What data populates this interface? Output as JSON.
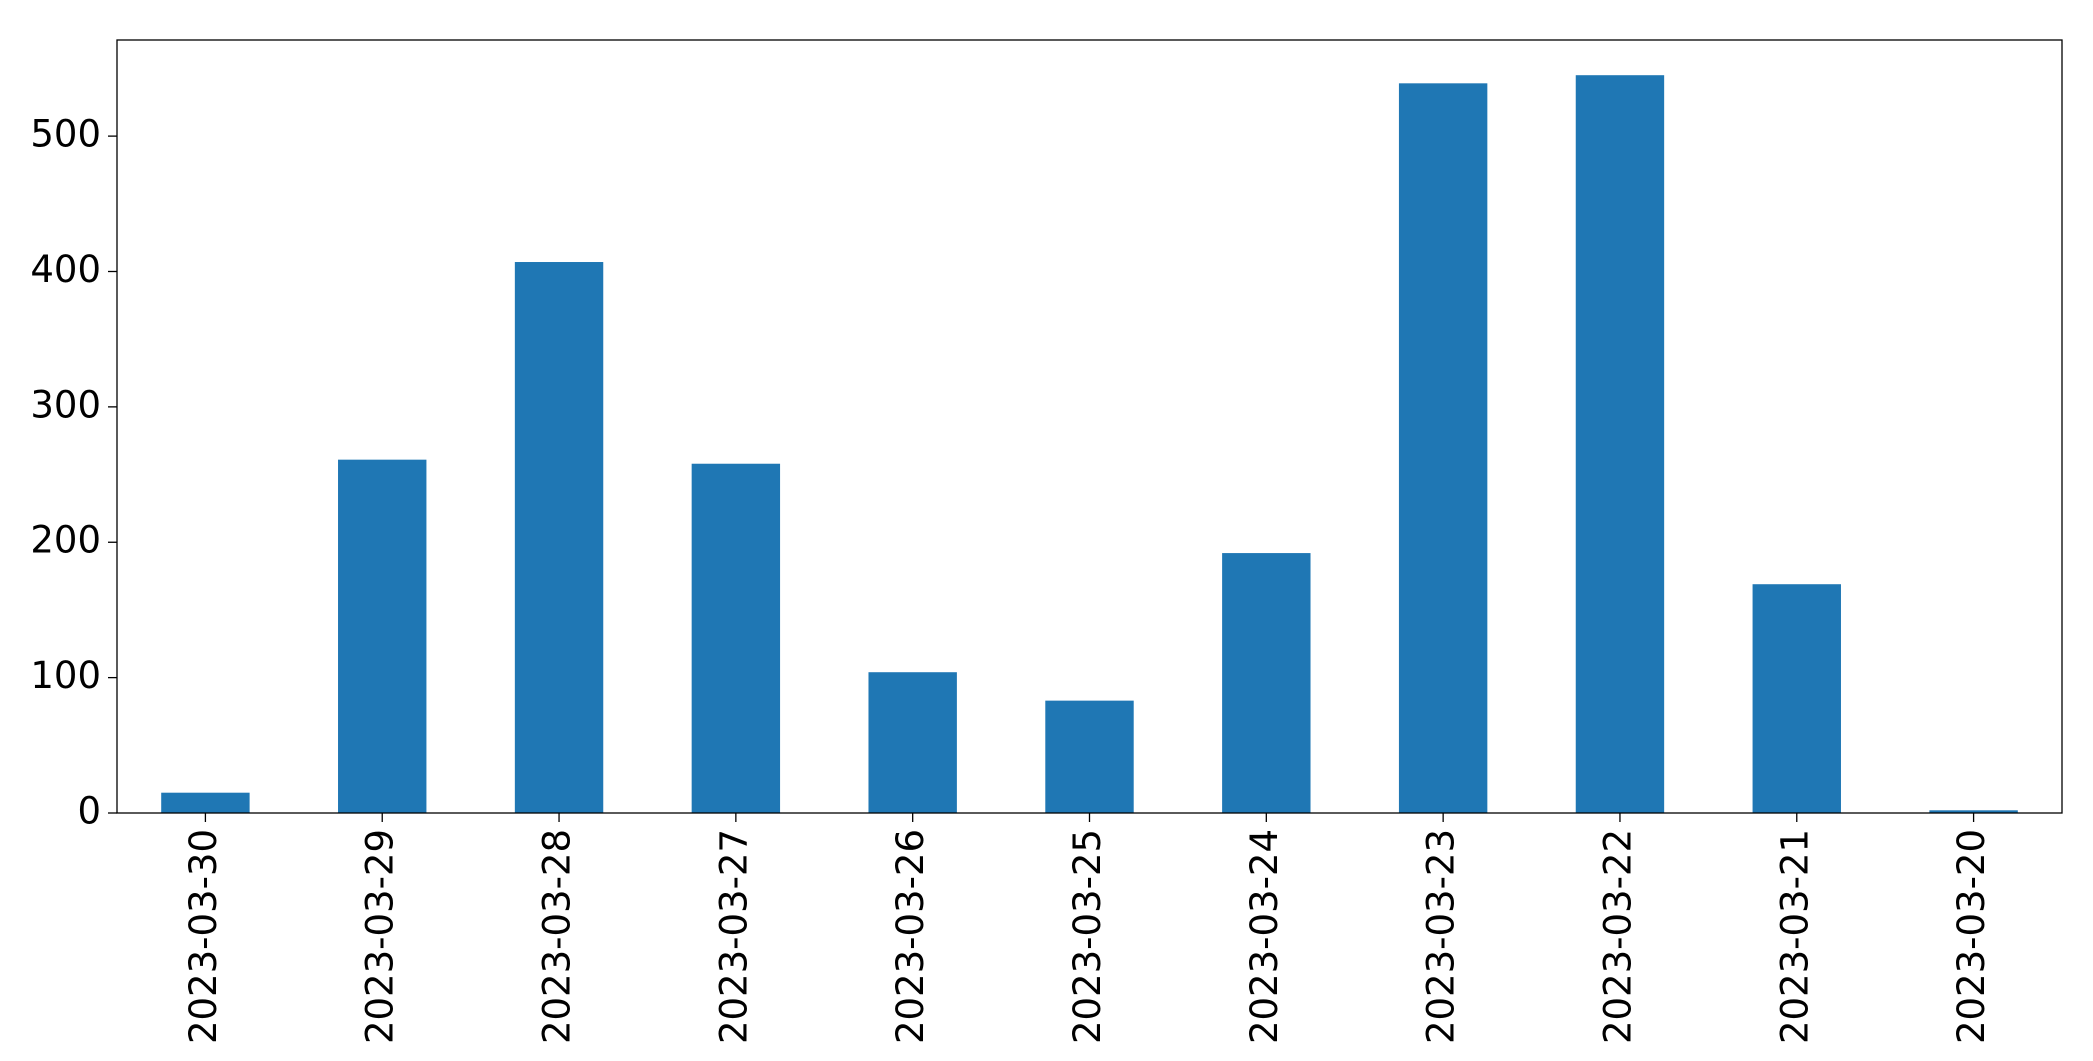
{
  "chart_data": {
    "type": "bar",
    "categories": [
      "2023-03-30",
      "2023-03-29",
      "2023-03-28",
      "2023-03-27",
      "2023-03-26",
      "2023-03-25",
      "2023-03-24",
      "2023-03-23",
      "2023-03-22",
      "2023-03-21",
      "2023-03-20"
    ],
    "values": [
      15,
      261,
      407,
      258,
      104,
      83,
      192,
      539,
      545,
      169,
      2
    ],
    "color": "#1f77b4",
    "ylim": [
      0,
      571
    ],
    "yticks": [
      0,
      100,
      200,
      300,
      400,
      500
    ],
    "grid": false
  }
}
